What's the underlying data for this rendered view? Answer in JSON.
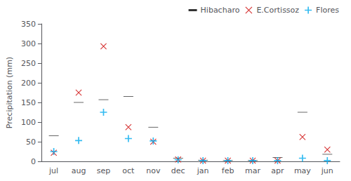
{
  "chart_data": {
    "type": "scatter",
    "categories": [
      "jul",
      "aug",
      "sep",
      "oct",
      "nov",
      "dec",
      "jan",
      "feb",
      "mar",
      "apr",
      "may",
      "jun"
    ],
    "series": [
      {
        "name": "Hibacharo",
        "color": "#000000",
        "marker": "dash",
        "values": [
          65,
          150,
          157,
          165,
          87,
          8,
          3,
          2,
          2,
          10,
          125,
          18
        ]
      },
      {
        "name": "E.Cortissoz",
        "color": "#cc0000",
        "marker": "x",
        "values": [
          22,
          175,
          293,
          87,
          50,
          5,
          2,
          2,
          2,
          2,
          62,
          30
        ]
      },
      {
        "name": "Flores",
        "color": "#00aaee",
        "marker": "plus",
        "values": [
          25,
          53,
          125,
          58,
          52,
          4,
          2,
          2,
          2,
          2,
          8,
          2
        ]
      }
    ],
    "ylabel": "Precipitation (mm)",
    "ylim": [
      0,
      350
    ],
    "yticks": [
      0,
      50,
      100,
      150,
      200,
      250,
      300,
      350
    ],
    "grid": false,
    "legend": "upper right"
  }
}
